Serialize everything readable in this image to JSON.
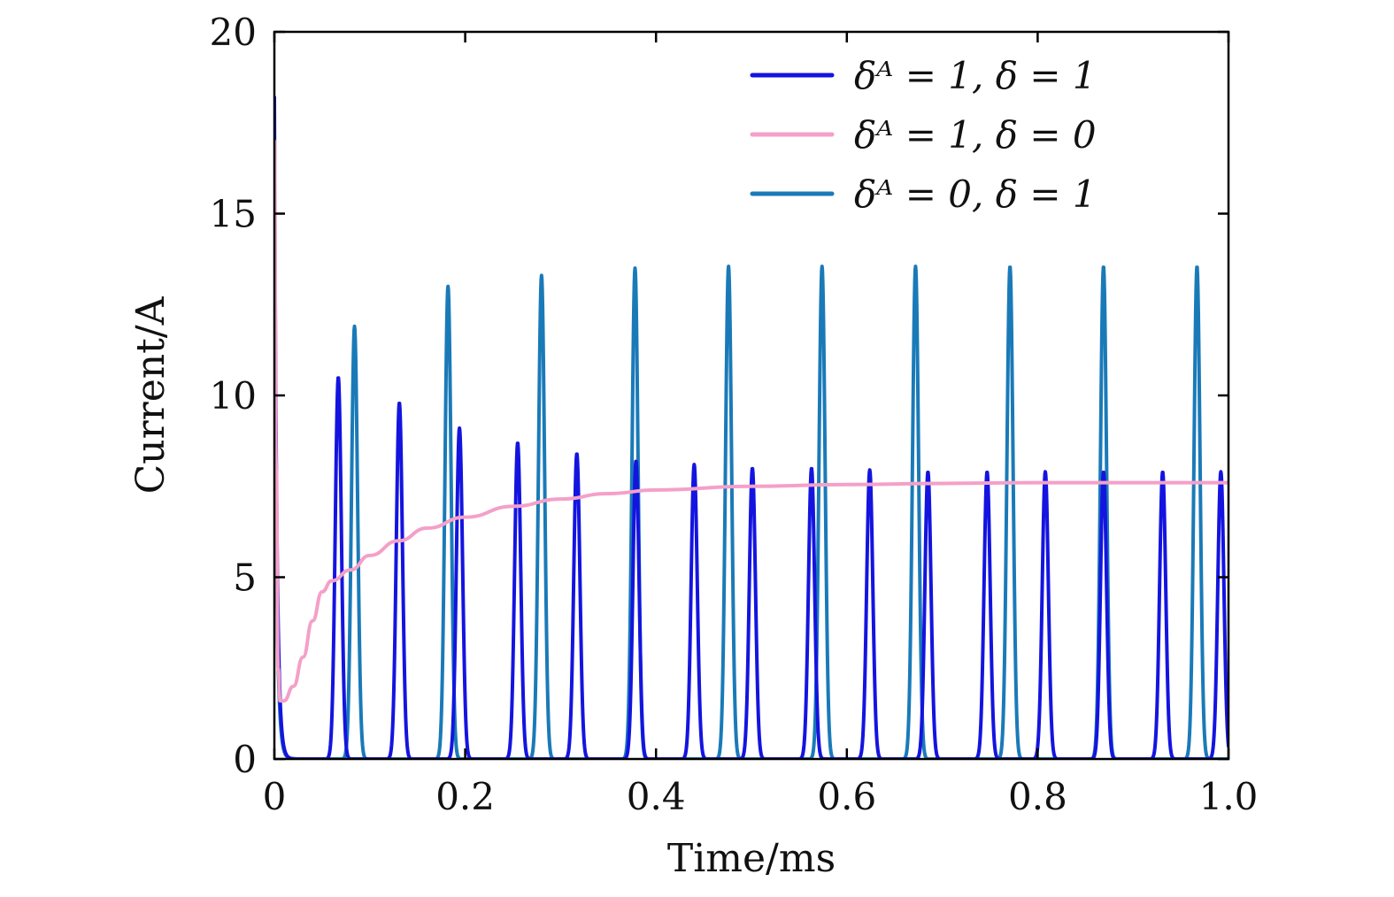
{
  "chart_data": {
    "type": "line",
    "xlabel": "Time/ms",
    "ylabel": "Current/A",
    "xlim": [
      0,
      1.0
    ],
    "ylim": [
      0,
      20
    ],
    "xticks": [
      "0",
      "0.2",
      "0.4",
      "0.6",
      "0.8",
      "1.0"
    ],
    "xtick_values": [
      0,
      0.2,
      0.4,
      0.6,
      0.8,
      1.0
    ],
    "yticks": [
      "0",
      "5",
      "10",
      "15",
      "20"
    ],
    "ytick_values": [
      0,
      5,
      10,
      15,
      20
    ],
    "grid": false,
    "legend_position": "top-right",
    "series": [
      {
        "name": "δᴬ = 1, δ = 1",
        "color": "#1414e0",
        "kind": "spikes",
        "initial_value": 18.2,
        "peaks": [
          {
            "x": 0.067,
            "y": 10.5
          },
          {
            "x": 0.131,
            "y": 9.8
          },
          {
            "x": 0.194,
            "y": 9.1
          },
          {
            "x": 0.255,
            "y": 8.7
          },
          {
            "x": 0.317,
            "y": 8.4
          },
          {
            "x": 0.379,
            "y": 8.2
          },
          {
            "x": 0.44,
            "y": 8.1
          },
          {
            "x": 0.501,
            "y": 8.0
          },
          {
            "x": 0.563,
            "y": 8.0
          },
          {
            "x": 0.624,
            "y": 7.95
          },
          {
            "x": 0.685,
            "y": 7.9
          },
          {
            "x": 0.747,
            "y": 7.9
          },
          {
            "x": 0.808,
            "y": 7.9
          },
          {
            "x": 0.869,
            "y": 7.9
          },
          {
            "x": 0.931,
            "y": 7.9
          },
          {
            "x": 0.992,
            "y": 7.9
          }
        ]
      },
      {
        "name": "δᴬ = 1, δ = 0",
        "color": "#f4a0c8",
        "kind": "curve",
        "points": [
          {
            "x": 0.0,
            "y": 17.0
          },
          {
            "x": 0.002,
            "y": 8.0
          },
          {
            "x": 0.004,
            "y": 2.5
          },
          {
            "x": 0.006,
            "y": 1.6
          },
          {
            "x": 0.01,
            "y": 1.6
          },
          {
            "x": 0.02,
            "y": 2.0
          },
          {
            "x": 0.03,
            "y": 2.8
          },
          {
            "x": 0.04,
            "y": 3.8
          },
          {
            "x": 0.05,
            "y": 4.6
          },
          {
            "x": 0.06,
            "y": 4.9
          },
          {
            "x": 0.08,
            "y": 5.2
          },
          {
            "x": 0.1,
            "y": 5.6
          },
          {
            "x": 0.13,
            "y": 6.0
          },
          {
            "x": 0.16,
            "y": 6.35
          },
          {
            "x": 0.2,
            "y": 6.65
          },
          {
            "x": 0.25,
            "y": 6.95
          },
          {
            "x": 0.3,
            "y": 7.15
          },
          {
            "x": 0.35,
            "y": 7.3
          },
          {
            "x": 0.4,
            "y": 7.4
          },
          {
            "x": 0.5,
            "y": 7.5
          },
          {
            "x": 0.6,
            "y": 7.55
          },
          {
            "x": 0.7,
            "y": 7.58
          },
          {
            "x": 0.8,
            "y": 7.6
          },
          {
            "x": 0.9,
            "y": 7.6
          },
          {
            "x": 1.0,
            "y": 7.6
          }
        ]
      },
      {
        "name": "δᴬ = 0, δ = 1",
        "color": "#1a7ab8",
        "kind": "spikes",
        "initial_value": 13.0,
        "peaks": [
          {
            "x": 0.084,
            "y": 11.9
          },
          {
            "x": 0.182,
            "y": 13.0
          },
          {
            "x": 0.28,
            "y": 13.3
          },
          {
            "x": 0.378,
            "y": 13.5
          },
          {
            "x": 0.476,
            "y": 13.55
          },
          {
            "x": 0.574,
            "y": 13.55
          },
          {
            "x": 0.672,
            "y": 13.55
          },
          {
            "x": 0.771,
            "y": 13.55
          },
          {
            "x": 0.869,
            "y": 13.55
          },
          {
            "x": 0.967,
            "y": 13.55
          }
        ]
      }
    ]
  }
}
